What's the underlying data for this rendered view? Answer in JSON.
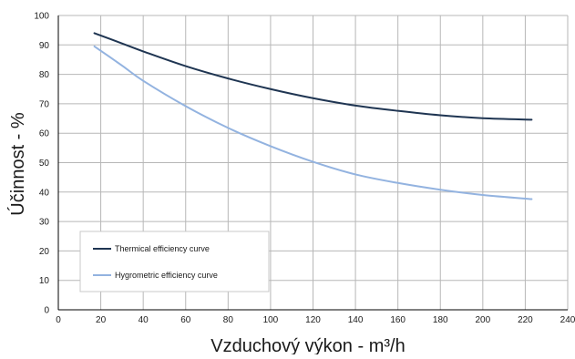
{
  "chart_data": {
    "type": "line",
    "title": "",
    "xlabel": "Vzduchový výkon - m³/h",
    "ylabel": "Účinnost - %",
    "xlim": [
      0,
      240
    ],
    "ylim": [
      0,
      100
    ],
    "x_ticks": [
      0,
      20,
      40,
      60,
      80,
      100,
      120,
      140,
      160,
      180,
      200,
      220,
      240
    ],
    "y_ticks": [
      0,
      10,
      20,
      30,
      40,
      50,
      60,
      70,
      80,
      90,
      100
    ],
    "x_tick_labels": [
      "0",
      "20",
      "40",
      "60",
      "80",
      "100",
      "120",
      "140",
      "160",
      "180",
      "200",
      "220",
      "240"
    ],
    "y_tick_labels": [
      "0",
      "10",
      "20",
      "30",
      "40",
      "50",
      "60",
      "70",
      "80",
      "90",
      "100"
    ],
    "grid": true,
    "legend_position": "bottom-left",
    "series": [
      {
        "name": "Thermical efficiency curve",
        "color": "#1f3552",
        "x": [
          17,
          30,
          40,
          60,
          80,
          100,
          120,
          140,
          160,
          180,
          200,
          223
        ],
        "y": [
          94,
          90.5,
          87.8,
          82.8,
          78.6,
          75,
          71.9,
          69.4,
          67.6,
          66.1,
          65.1,
          64.6
        ]
      },
      {
        "name": "Hygrometric efficiency curve",
        "color": "#93b3e0",
        "x": [
          17,
          30,
          40,
          60,
          80,
          100,
          120,
          140,
          160,
          180,
          200,
          223
        ],
        "y": [
          89.5,
          83,
          77.8,
          69.2,
          61.8,
          55.6,
          50.3,
          46,
          43.1,
          40.8,
          39,
          37.6
        ]
      }
    ]
  }
}
